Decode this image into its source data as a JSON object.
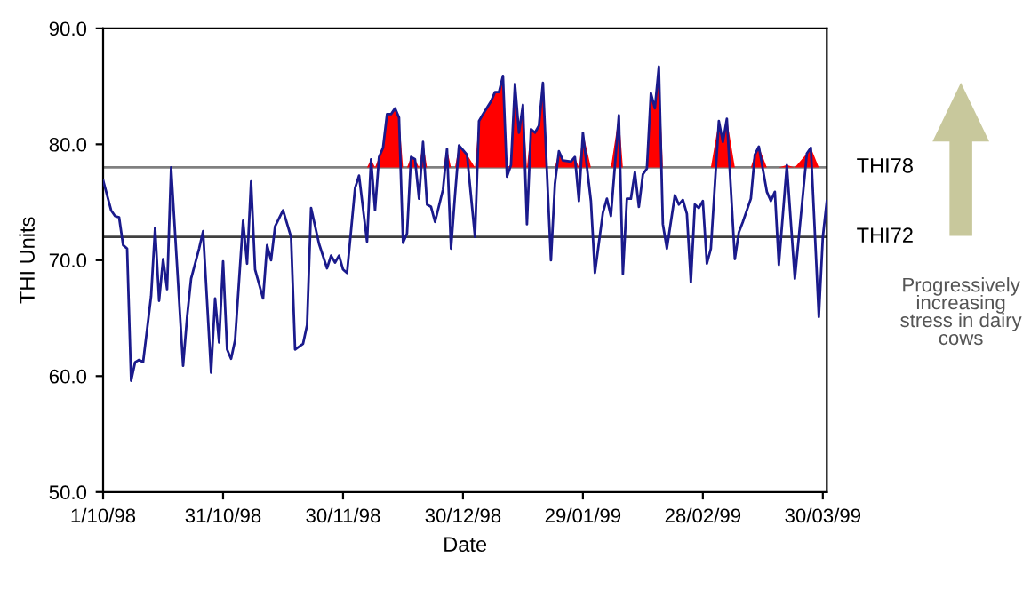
{
  "chart_data": {
    "type": "line",
    "xlabel": "Date",
    "ylabel": "THI Units",
    "x": [
      "1998-10-01",
      "1998-10-03",
      "1998-10-04",
      "1998-10-05",
      "1998-10-06",
      "1998-10-07",
      "1998-10-08",
      "1998-10-09",
      "1998-10-10",
      "1998-10-11",
      "1998-10-13",
      "1998-10-14",
      "1998-10-15",
      "1998-10-16",
      "1998-10-17",
      "1998-10-18",
      "1998-10-21",
      "1998-10-22",
      "1998-10-23",
      "1998-10-25",
      "1998-10-26",
      "1998-10-28",
      "1998-10-29",
      "1998-10-30",
      "1998-10-31",
      "1998-11-01",
      "1998-11-02",
      "1998-11-03",
      "1998-11-05",
      "1998-11-06",
      "1998-11-07",
      "1998-11-08",
      "1998-11-10",
      "1998-11-11",
      "1998-11-12",
      "1998-11-13",
      "1998-11-15",
      "1998-11-17",
      "1998-11-18",
      "1998-11-20",
      "1998-11-21",
      "1998-11-22",
      "1998-11-24",
      "1998-11-26",
      "1998-11-27",
      "1998-11-28",
      "1998-11-29",
      "1998-11-30",
      "1998-12-01",
      "1998-12-03",
      "1998-12-04",
      "1998-12-06",
      "1998-12-07",
      "1998-12-08",
      "1998-12-09",
      "1998-12-10",
      "1998-12-11",
      "1998-12-12",
      "1998-12-13",
      "1998-12-14",
      "1998-12-15",
      "1998-12-16",
      "1998-12-17",
      "1998-12-18",
      "1998-12-19",
      "1998-12-20",
      "1998-12-21",
      "1998-12-22",
      "1998-12-23",
      "1998-12-25",
      "1998-12-26",
      "1998-12-27",
      "1998-12-28",
      "1998-12-29",
      "1998-12-31",
      "1999-01-02",
      "1999-01-03",
      "1999-01-04",
      "1999-01-06",
      "1999-01-07",
      "1999-01-08",
      "1999-01-09",
      "1999-01-10",
      "1999-01-11",
      "1999-01-12",
      "1999-01-13",
      "1999-01-14",
      "1999-01-15",
      "1999-01-16",
      "1999-01-17",
      "1999-01-18",
      "1999-01-19",
      "1999-01-20",
      "1999-01-21",
      "1999-01-22",
      "1999-01-23",
      "1999-01-24",
      "1999-01-26",
      "1999-01-27",
      "1999-01-28",
      "1999-01-29",
      "1999-01-31",
      "1999-02-01",
      "1999-02-03",
      "1999-02-04",
      "1999-02-05",
      "1999-02-07",
      "1999-02-08",
      "1999-02-09",
      "1999-02-10",
      "1999-02-11",
      "1999-02-12",
      "1999-02-13",
      "1999-02-14",
      "1999-02-15",
      "1999-02-16",
      "1999-02-17",
      "1999-02-18",
      "1999-02-19",
      "1999-02-21",
      "1999-02-22",
      "1999-02-23",
      "1999-02-24",
      "1999-02-25",
      "1999-02-26",
      "1999-02-27",
      "1999-02-28",
      "1999-03-01",
      "1999-03-02",
      "1999-03-04",
      "1999-03-05",
      "1999-03-06",
      "1999-03-08",
      "1999-03-09",
      "1999-03-10",
      "1999-03-12",
      "1999-03-13",
      "1999-03-14",
      "1999-03-16",
      "1999-03-17",
      "1999-03-18",
      "1999-03-19",
      "1999-03-21",
      "1999-03-23",
      "1999-03-26",
      "1999-03-27",
      "1999-03-29",
      "1999-03-30",
      "1999-03-31"
    ],
    "series": [
      {
        "color": "#1a1a8c",
        "values": [
          76.9,
          74.3,
          73.8,
          73.7,
          71.3,
          71.0,
          59.6,
          61.2,
          61.4,
          61.2,
          66.9,
          72.8,
          66.5,
          70.1,
          67.5,
          78.0,
          60.9,
          65.1,
          68.4,
          71.0,
          72.5,
          60.3,
          66.7,
          62.9,
          69.9,
          62.3,
          61.5,
          63.1,
          73.4,
          69.7,
          76.8,
          69.2,
          66.7,
          71.3,
          70.0,
          72.9,
          74.3,
          72.0,
          62.3,
          62.8,
          64.4,
          74.5,
          71.4,
          69.3,
          70.4,
          69.8,
          70.4,
          69.2,
          68.9,
          76.2,
          77.3,
          71.6,
          78.7,
          74.3,
          78.9,
          79.7,
          82.6,
          82.6,
          83.1,
          82.3,
          71.5,
          72.3,
          78.9,
          78.7,
          75.3,
          80.2,
          74.8,
          74.6,
          73.3,
          76.1,
          79.6,
          71.0,
          75.6,
          79.9,
          79.1,
          72.0,
          82.0,
          82.6,
          83.7,
          84.5,
          84.5,
          85.9,
          77.2,
          78.2,
          85.2,
          81.0,
          83.4,
          73.1,
          81.3,
          81.0,
          81.6,
          85.3,
          77.6,
          70.0,
          76.6,
          79.4,
          78.6,
          78.5,
          78.9,
          75.1,
          81.0,
          75.1,
          68.9,
          74.1,
          75.3,
          73.8,
          82.5,
          68.8,
          75.3,
          75.3,
          77.6,
          74.6,
          77.4,
          77.9,
          84.4,
          83.1,
          86.7,
          73.1,
          71.0,
          75.6,
          74.8,
          75.2,
          74.0,
          68.1,
          74.8,
          74.5,
          75.1,
          69.7,
          71.0,
          82.0,
          80.2,
          82.2,
          70.1,
          72.4,
          73.3,
          75.3,
          79.1,
          79.8,
          75.9,
          75.1,
          75.9,
          69.6,
          78.2,
          68.4,
          79.2,
          79.7,
          65.1,
          72.0,
          75.1
        ],
        "lower": [
          78,
          78,
          78,
          78,
          78,
          78,
          78,
          78,
          78,
          78,
          78,
          78,
          78,
          78,
          78,
          78,
          78,
          78,
          78,
          78,
          78,
          78,
          78,
          78,
          78,
          78,
          78,
          78,
          78,
          78,
          78,
          78,
          78,
          78,
          78,
          78,
          78,
          78,
          78,
          78,
          78,
          78,
          78,
          78,
          78,
          78,
          78,
          78,
          78,
          78,
          78,
          78,
          78,
          78,
          78,
          78,
          78,
          78,
          78,
          78,
          78,
          78,
          78,
          78,
          78,
          78,
          78,
          78,
          78,
          78,
          78,
          78,
          78,
          78,
          78,
          78,
          78,
          78,
          78,
          78,
          78,
          78,
          78,
          78,
          78,
          78,
          78,
          78,
          78,
          78,
          78,
          78,
          78,
          78,
          78,
          78,
          78,
          78,
          78,
          78,
          78,
          78,
          78,
          78,
          78,
          78,
          78,
          78,
          78,
          78,
          78,
          78,
          78,
          78,
          78,
          78,
          78,
          78,
          78,
          78,
          78,
          78,
          78,
          78,
          78,
          78,
          78,
          78,
          78,
          78,
          78,
          78,
          78,
          78,
          78,
          78,
          78,
          78,
          78,
          78,
          78,
          78,
          78,
          78,
          78,
          78,
          78,
          78,
          78
        ],
        "upper": [
          78,
          78,
          78,
          78,
          78,
          78,
          78,
          78,
          78,
          78,
          78,
          78,
          78,
          78,
          78,
          78,
          78,
          78,
          78,
          78,
          78,
          78,
          78,
          78,
          78,
          78,
          78,
          78,
          78,
          78,
          78,
          78,
          78,
          78,
          78,
          78,
          78,
          78,
          78,
          78,
          78,
          78,
          78,
          78,
          78,
          78,
          78,
          78,
          78,
          78,
          78,
          78,
          78.7,
          78,
          78.9,
          79.7,
          82.6,
          82.6,
          83.1,
          82.3,
          78,
          78,
          78.9,
          78.7,
          78,
          80.2,
          78,
          78,
          78,
          78,
          79.6,
          78,
          78,
          79.9,
          79.1,
          78,
          82.0,
          82.6,
          83.7,
          84.5,
          84.5,
          85.9,
          78,
          78.2,
          85.2,
          81.0,
          83.4,
          78,
          81.3,
          81.0,
          81.6,
          85.3,
          78,
          78,
          78,
          79.4,
          78.6,
          78.5,
          78.9,
          78,
          81.0,
          78,
          78,
          78,
          78,
          78,
          82.5,
          78,
          78,
          78,
          78,
          78,
          78,
          78,
          84.4,
          83.1,
          86.7,
          78,
          78,
          78,
          78,
          78,
          78,
          78,
          78,
          78,
          78,
          78,
          78,
          82.0,
          80.2,
          82.2,
          78,
          78,
          78,
          78,
          79.1,
          79.8,
          78,
          78,
          78,
          78,
          78.2,
          78,
          79.2,
          79.7,
          78,
          78,
          78
        ]
      }
    ],
    "xlim": [
      "1998-10-01",
      "1999-03-31"
    ],
    "xticks": [
      {
        "value": "1998-10-01",
        "label": "1/10/98"
      },
      {
        "value": "1998-10-31",
        "label": "31/10/98"
      },
      {
        "value": "1998-11-30",
        "label": "30/11/98"
      },
      {
        "value": "1998-12-30",
        "label": "30/12/98"
      },
      {
        "value": "1999-01-29",
        "label": "29/01/99"
      },
      {
        "value": "1999-02-28",
        "label": "28/02/99"
      },
      {
        "value": "1999-03-30",
        "label": "30/03/99"
      }
    ],
    "ylim": [
      50,
      90
    ],
    "yticks": [
      {
        "value": 50,
        "label": "50.0"
      },
      {
        "value": 60,
        "label": "60.0"
      },
      {
        "value": 70,
        "label": "70.0"
      },
      {
        "value": 80,
        "label": "80.0"
      },
      {
        "value": 90,
        "label": "90.0"
      }
    ],
    "ref_lines": [
      {
        "axis": "y",
        "value": 78,
        "label": "THI78",
        "color": "#808080"
      },
      {
        "axis": "y",
        "value": 72,
        "label": "THI72",
        "color": "#404040"
      }
    ],
    "annotations": [
      "Progressively\nincreasing\nstress in dairy\ncows"
    ],
    "grid": false,
    "legend": false,
    "marker": "none",
    "line_style": "solid"
  }
}
